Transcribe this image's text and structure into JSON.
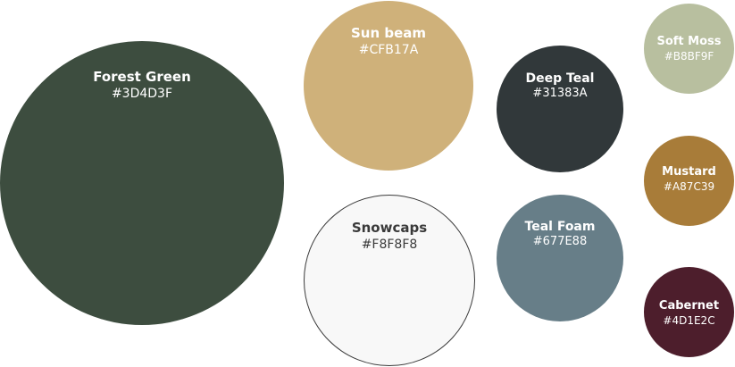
{
  "palette": {
    "swatches": [
      {
        "name": "Forest Green",
        "hex": "#3D4D3F",
        "color": "#3D4D3F"
      },
      {
        "name": "Sun beam",
        "hex": "#CFB17A",
        "color": "#CFB17A"
      },
      {
        "name": "Snowcaps",
        "hex": "#F8F8F8",
        "color": "#F8F8F8"
      },
      {
        "name": "Deep Teal",
        "hex": "#31383A",
        "color": "#31383A"
      },
      {
        "name": "Teal Foam",
        "hex": "#677E88",
        "color": "#677E88"
      },
      {
        "name": "Soft Moss",
        "hex": "#B8BF9F",
        "color": "#B8BF9F"
      },
      {
        "name": "Mustard",
        "hex": "#A87C39",
        "color": "#A87C39"
      },
      {
        "name": "Cabernet",
        "hex": "#4D1E2C",
        "color": "#4D1E2C"
      }
    ]
  }
}
